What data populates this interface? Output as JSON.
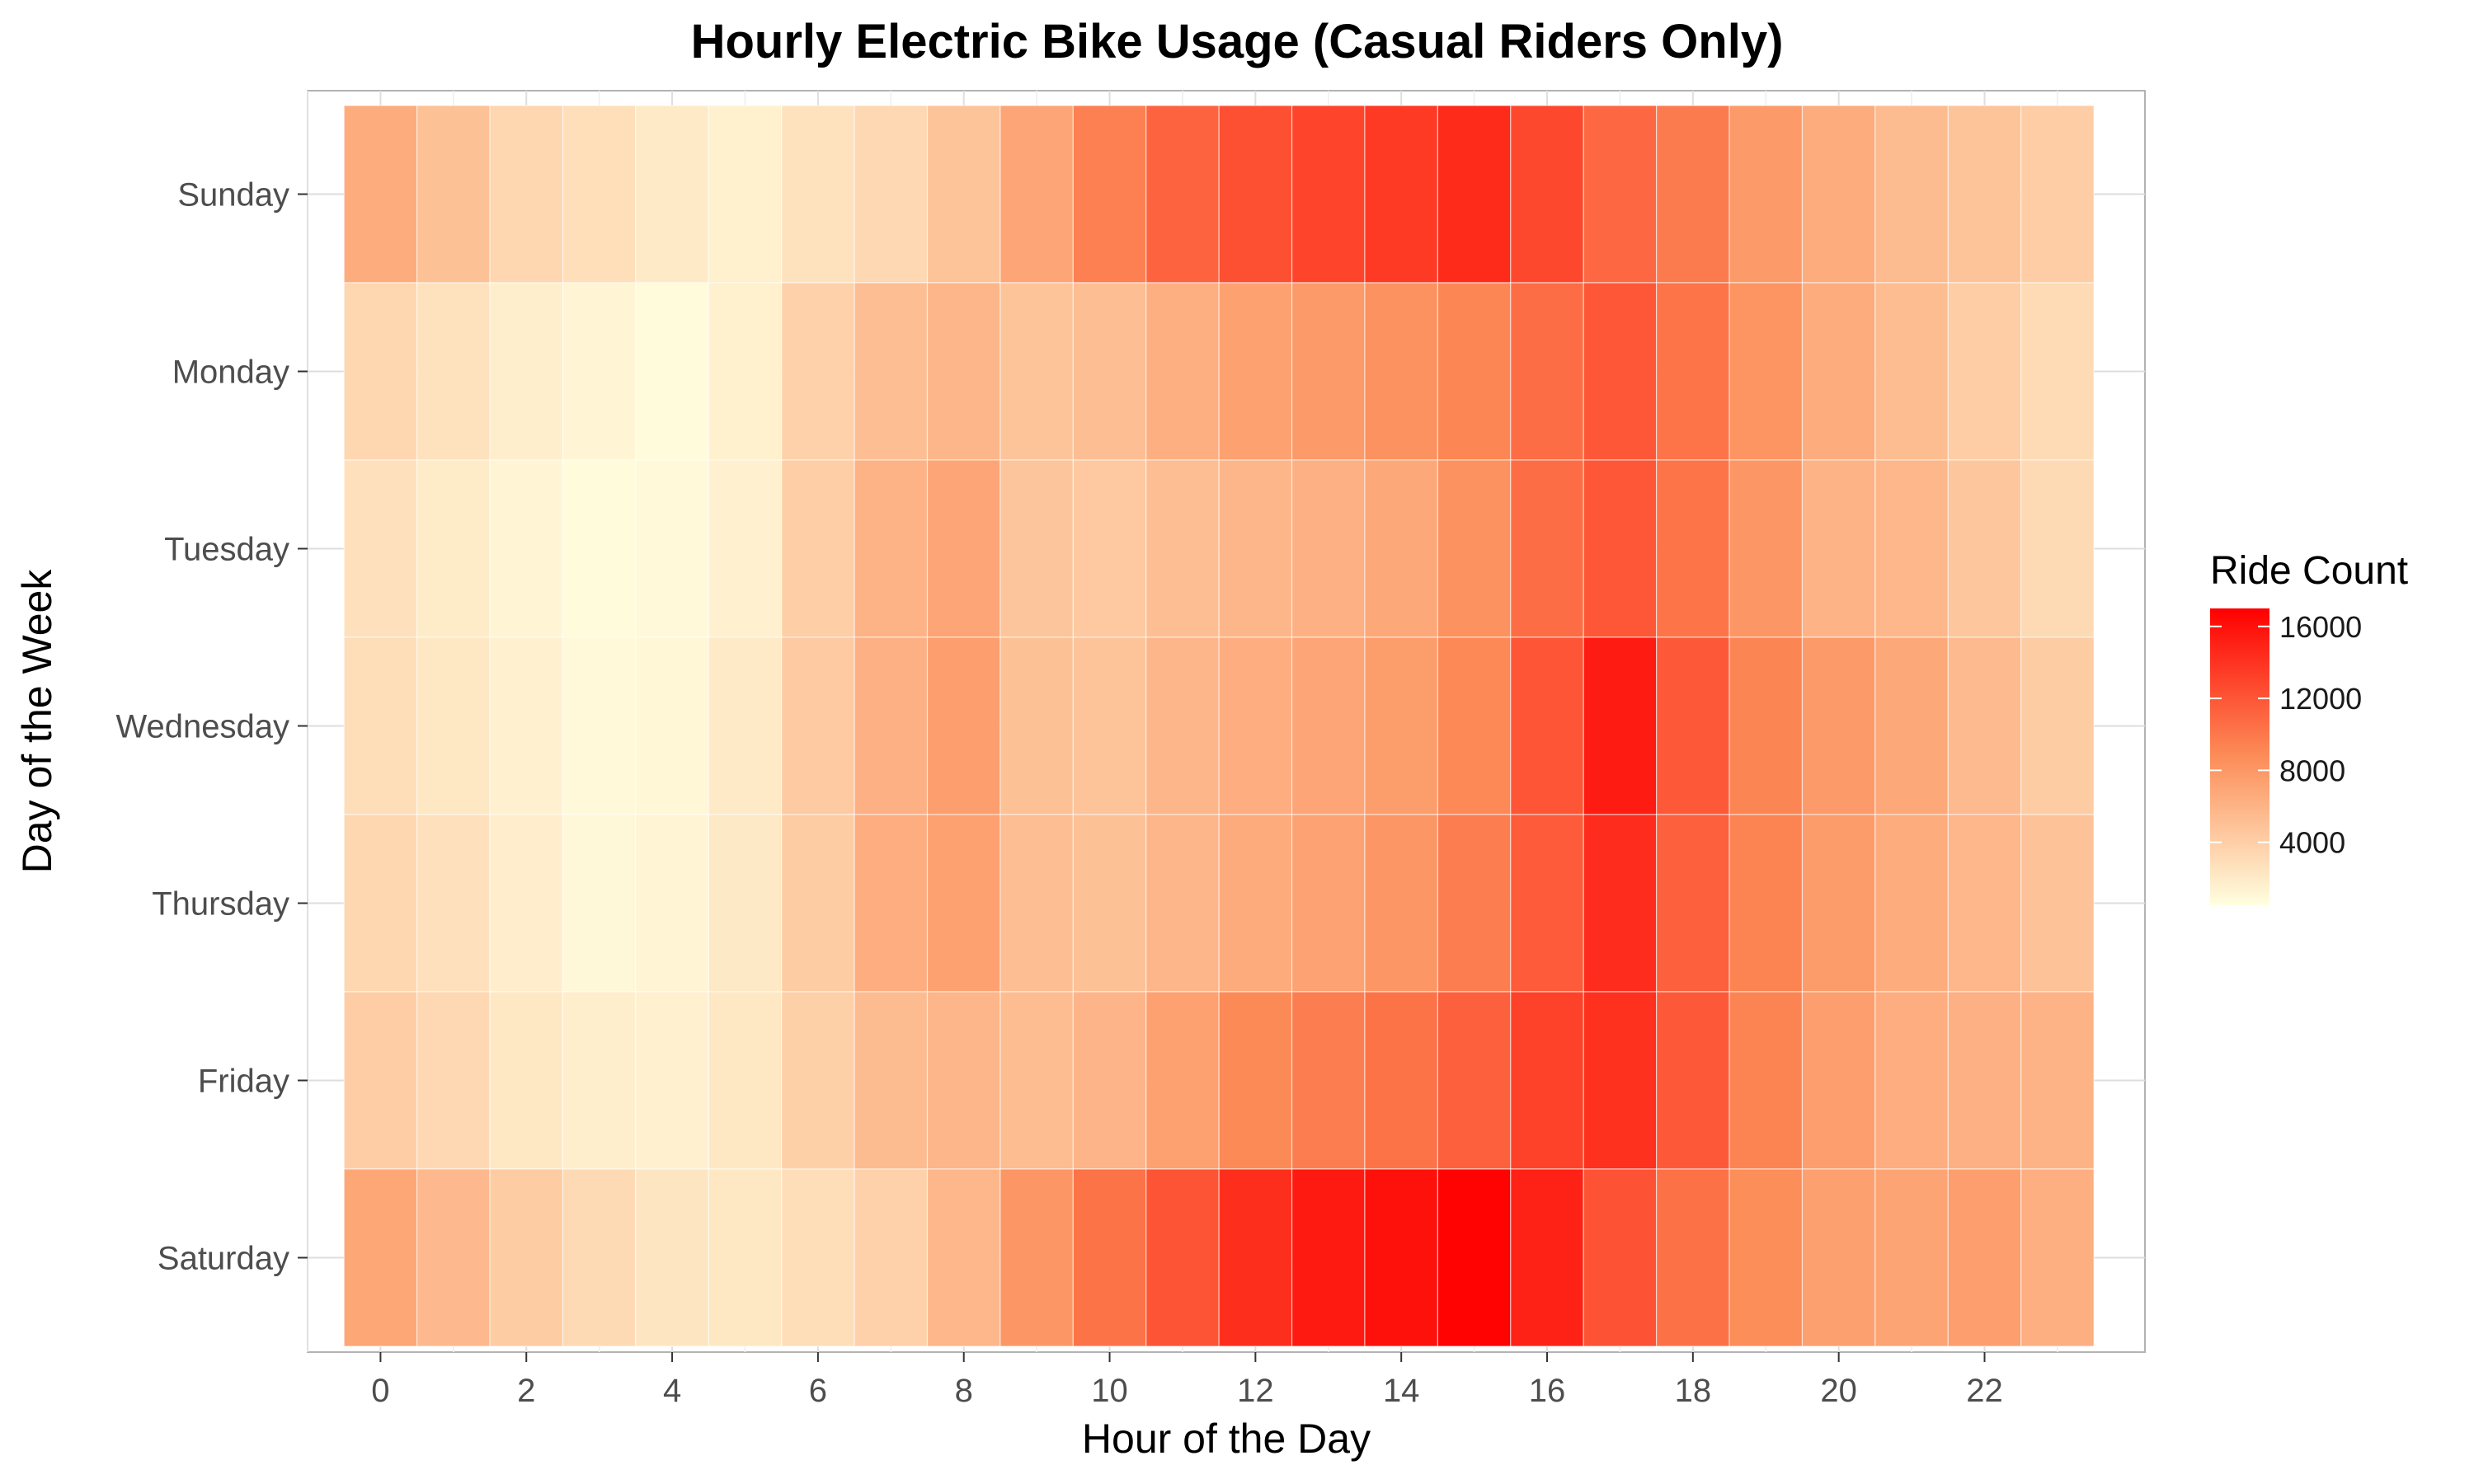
{
  "chart_data": {
    "type": "heatmap",
    "title": "Hourly Electric Bike Usage (Casual Riders Only)",
    "xlabel": "Hour of the Day",
    "ylabel": "Day of the Week",
    "x": [
      0,
      1,
      2,
      3,
      4,
      5,
      6,
      7,
      8,
      9,
      10,
      11,
      12,
      13,
      14,
      15,
      16,
      17,
      18,
      19,
      20,
      21,
      22,
      23
    ],
    "x_ticks": [
      0,
      2,
      4,
      6,
      8,
      10,
      12,
      14,
      16,
      18,
      20,
      22
    ],
    "y": [
      "Sunday",
      "Monday",
      "Tuesday",
      "Wednesday",
      "Thursday",
      "Friday",
      "Saturday"
    ],
    "values": [
      [
        6500,
        5000,
        3500,
        2800,
        2000,
        1600,
        2600,
        3300,
        4800,
        7000,
        9500,
        11200,
        12300,
        13000,
        13600,
        14500,
        12800,
        10900,
        9800,
        7800,
        6500,
        5400,
        4800,
        4100
      ],
      [
        3500,
        2600,
        1700,
        1200,
        800,
        1600,
        3800,
        5200,
        5800,
        4800,
        5200,
        6300,
        7300,
        7800,
        8400,
        9100,
        10600,
        11900,
        10200,
        8200,
        6500,
        5300,
        4100,
        3100
      ],
      [
        2700,
        1900,
        1200,
        800,
        900,
        1500,
        4000,
        6000,
        7000,
        4700,
        4400,
        5200,
        5800,
        6200,
        6800,
        8400,
        10600,
        11900,
        10200,
        8000,
        6000,
        5700,
        4600,
        3200
      ],
      [
        2900,
        2200,
        1500,
        900,
        1100,
        2000,
        4300,
        6200,
        7500,
        5000,
        4800,
        5800,
        6400,
        7000,
        7600,
        9000,
        12000,
        15400,
        11800,
        9200,
        7800,
        6800,
        5500,
        4200
      ],
      [
        3400,
        2700,
        1800,
        1000,
        1300,
        2100,
        4200,
        6400,
        7300,
        5200,
        5000,
        5800,
        6600,
        7200,
        8000,
        9600,
        11700,
        14400,
        11400,
        9300,
        7700,
        6500,
        5700,
        4900
      ],
      [
        4100,
        3300,
        2200,
        1700,
        1500,
        2200,
        3900,
        5400,
        5800,
        5300,
        5900,
        7300,
        8900,
        9600,
        10300,
        11400,
        13200,
        14200,
        11800,
        9300,
        7500,
        6400,
        6200,
        6000
      ],
      [
        6900,
        5600,
        4200,
        3200,
        2400,
        2200,
        2900,
        3800,
        5700,
        8000,
        10300,
        12100,
        14300,
        15500,
        16000,
        16800,
        15000,
        12200,
        10400,
        8700,
        7400,
        7100,
        7500,
        6300
      ]
    ],
    "color_scale": {
      "low": "#ffffe0",
      "mid": "#fc8d59",
      "high": "#ff0000",
      "min": 500,
      "max": 17000
    },
    "legend": {
      "title": "Ride Count",
      "ticks": [
        4000,
        8000,
        12000,
        16000
      ],
      "placement": "right"
    },
    "grid": true
  }
}
